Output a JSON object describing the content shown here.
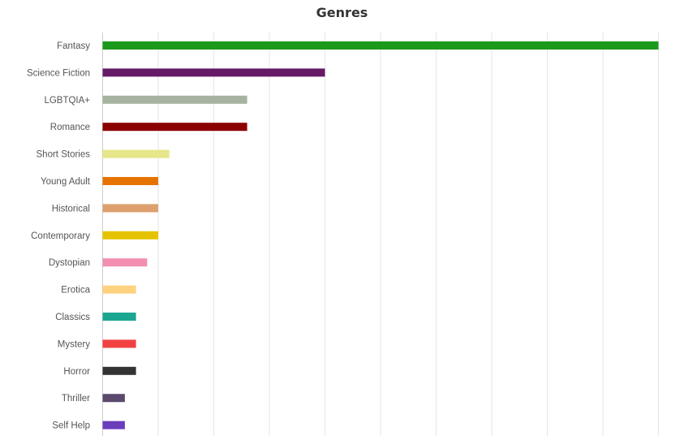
{
  "chart_data": {
    "type": "bar",
    "orientation": "horizontal",
    "title": "Genres",
    "xlabel": "",
    "ylabel": "",
    "xlim": [
      0,
      50
    ],
    "grid": true,
    "categories": [
      "Fantasy",
      "Science Fiction",
      "LGBTQIA+",
      "Romance",
      "Short Stories",
      "Young Adult",
      "Historical",
      "Contemporary",
      "Dystopian",
      "Erotica",
      "Classics",
      "Mystery",
      "Horror",
      "Thriller",
      "Self Help"
    ],
    "values": [
      50,
      20,
      13,
      13,
      6,
      5,
      5,
      5,
      4,
      3,
      3,
      3,
      3,
      2,
      2
    ],
    "colors": [
      "#1a991a",
      "#661a66",
      "#a6b3a0",
      "#8b0000",
      "#e6e68a",
      "#e67300",
      "#dda06e",
      "#e6c300",
      "#f28fb0",
      "#ffd280",
      "#1aa691",
      "#f24141",
      "#333333",
      "#5c4a6e",
      "#6a3dba"
    ]
  }
}
